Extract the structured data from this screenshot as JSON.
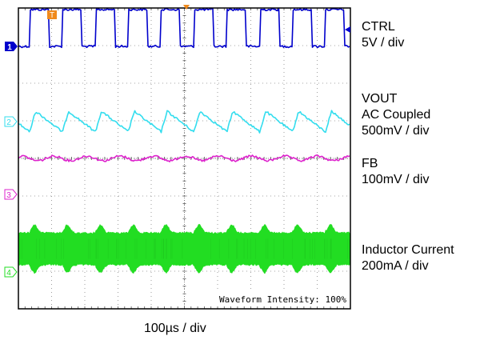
{
  "chart_data": {
    "type": "line",
    "grid": true,
    "divisions": {
      "x": 10,
      "y": 8
    },
    "x_ticklabel": "100µs / div",
    "status_text": "Waveform Intensity: 100%",
    "trigger_marker": "T",
    "series": [
      {
        "name": "CTRL",
        "channel": "1",
        "label_lines": [
          "CTRL",
          "5V / div"
        ],
        "color": "#0000cc",
        "shape": "square",
        "period_divs": 0.99,
        "amplitude_divs": 0.98,
        "noise_divs": 0.03
      },
      {
        "name": "VOUT",
        "channel": "2",
        "label_lines": [
          "VOUT",
          "AC Coupled",
          "500mV / div"
        ],
        "color": "#33ddee",
        "shape": "sawtooth",
        "period_divs": 0.99,
        "amplitude_divs": 0.55,
        "noise_divs": 0.03
      },
      {
        "name": "FB",
        "channel": "3",
        "label_lines": [
          "FB",
          "100mV / div"
        ],
        "color": "#dd22cc",
        "shape": "ripple",
        "period_divs": 0.99,
        "amplitude_divs": 0.06,
        "noise_divs": 0.03
      },
      {
        "name": "Inductor Current",
        "channel": "4",
        "label_lines": [
          "Inductor Current",
          "200mA / div"
        ],
        "color": "#22dd22",
        "shape": "band",
        "period_divs": 0.99,
        "amplitude_divs": 0.8,
        "noise_divs": 0.05
      }
    ]
  }
}
